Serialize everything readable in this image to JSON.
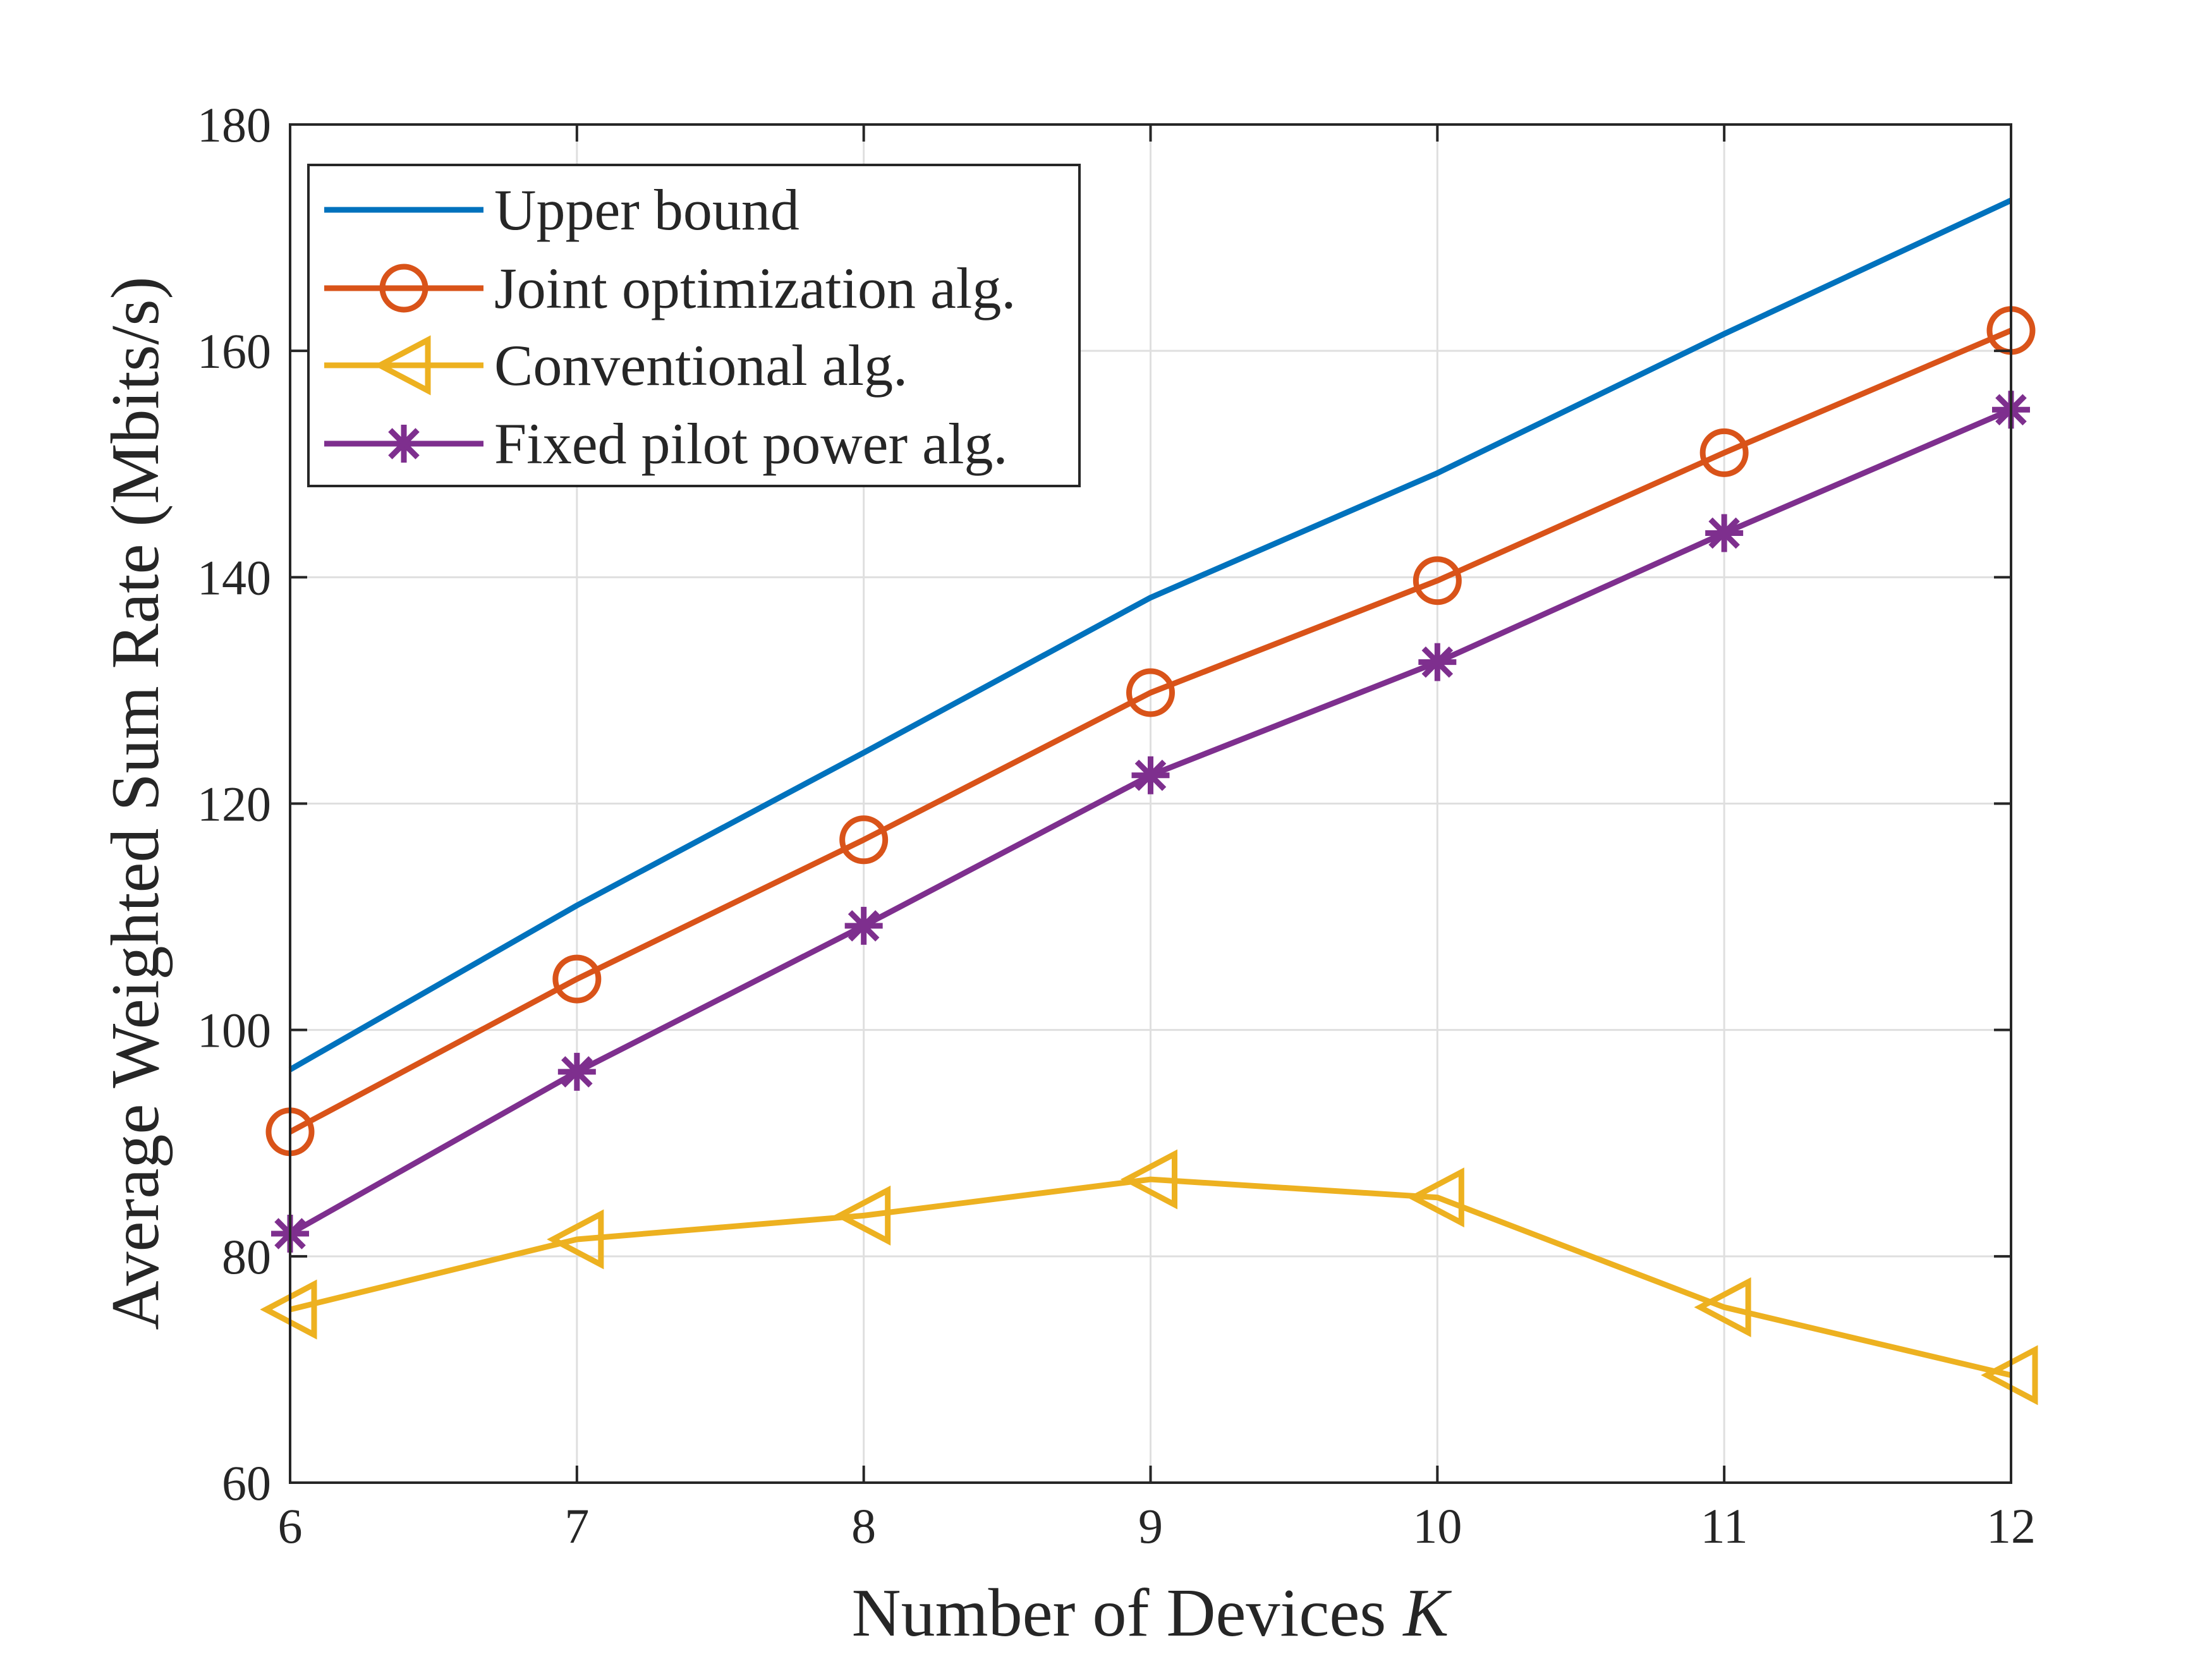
{
  "chart_data": {
    "type": "line",
    "title": "",
    "xlabel": "Number of Devices ",
    "xlabel_var": "K",
    "ylabel": "Average Weighted Sum Rate (Mbits/s)",
    "x": [
      6,
      7,
      8,
      9,
      10,
      11,
      12
    ],
    "xlim": [
      6,
      12
    ],
    "ylim": [
      60,
      180
    ],
    "xticks": [
      6,
      7,
      8,
      9,
      10,
      11,
      12
    ],
    "yticks": [
      60,
      80,
      100,
      120,
      140,
      160,
      180
    ],
    "grid": true,
    "legend_position": "top-left",
    "series": [
      {
        "name": "Upper bound",
        "color": "#0072BD",
        "marker": "none",
        "values": [
          96.5,
          111.0,
          124.5,
          138.2,
          149.2,
          161.5,
          173.3
        ]
      },
      {
        "name": "Joint optimization alg.",
        "color": "#D95319",
        "marker": "circle",
        "values": [
          91.0,
          104.5,
          116.8,
          129.8,
          139.7,
          151.0,
          161.8
        ]
      },
      {
        "name": "Conventional alg.",
        "color": "#EDB120",
        "marker": "triangle-left",
        "values": [
          75.3,
          81.5,
          83.6,
          86.8,
          85.2,
          75.5,
          69.5
        ]
      },
      {
        "name": "Fixed pilot power alg.",
        "color": "#7E2F8E",
        "marker": "asterisk",
        "values": [
          82.0,
          96.3,
          109.2,
          122.5,
          132.5,
          143.9,
          154.8
        ]
      }
    ]
  }
}
